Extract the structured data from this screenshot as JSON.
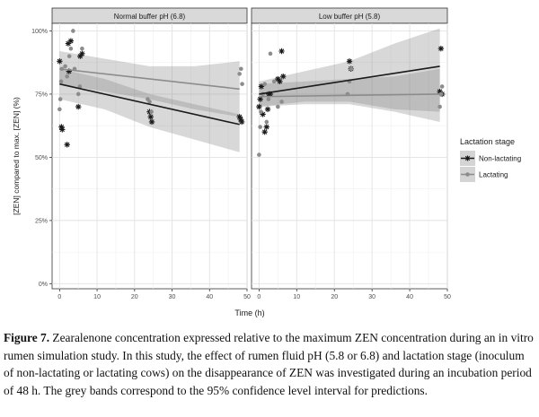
{
  "chart_data": {
    "type": "scatter",
    "title": "",
    "xlabel": "Time (h)",
    "ylabel": "[ZEN] compared to max. [ZEN] (%)",
    "xlim": [
      -2,
      50
    ],
    "ylim": [
      -2,
      103
    ],
    "x_ticks": [
      0,
      10,
      20,
      30,
      40,
      50
    ],
    "y_ticks": [
      0,
      25,
      50,
      75,
      100
    ],
    "y_tick_labels": [
      "0%",
      "25%",
      "50%",
      "75%",
      "100%"
    ],
    "grid": true,
    "legend": {
      "title": "Lactation stage",
      "position": "right",
      "entries": [
        {
          "name": "Non-lactating",
          "color": "#1a1a1a"
        },
        {
          "name": "Lactating",
          "color": "#8c8c8c"
        }
      ]
    },
    "panels": [
      {
        "strip": "Normal buffer pH (6.8)",
        "series": [
          {
            "name": "Non-lactating",
            "marker": "asterisk",
            "fit": {
              "x": [
                0,
                48
              ],
              "y": [
                79,
                63
              ]
            },
            "ci": {
              "x": [
                0,
                12,
                24,
                36,
                48
              ],
              "lower": [
                73,
                69,
                62,
                57,
                52
              ],
              "upper": [
                85,
                81,
                75,
                71,
                67
              ]
            },
            "points": [
              [
                0,
                88
              ],
              [
                0.5,
                62
              ],
              [
                0.7,
                61
              ],
              [
                2,
                55
              ],
              [
                2.3,
                95
              ],
              [
                2.5,
                84
              ],
              [
                3,
                96
              ],
              [
                5,
                70
              ],
              [
                5.5,
                90
              ],
              [
                6,
                91
              ],
              [
                24,
                68
              ],
              [
                24.3,
                66
              ],
              [
                24.6,
                64
              ],
              [
                48,
                66
              ],
              [
                48.3,
                65
              ],
              [
                48.6,
                64
              ]
            ]
          },
          {
            "name": "Lactating",
            "marker": "dot",
            "fit": {
              "x": [
                0,
                48
              ],
              "y": [
                85,
                77
              ]
            },
            "ci": {
              "x": [
                0,
                12,
                24,
                36,
                48
              ],
              "lower": [
                79,
                76,
                73,
                69,
                66
              ],
              "upper": [
                92,
                89,
                86,
                86,
                88
              ]
            },
            "points": [
              [
                0,
                69
              ],
              [
                0.2,
                73
              ],
              [
                0.4,
                80
              ],
              [
                0.6,
                85
              ],
              [
                1.5,
                86
              ],
              [
                2,
                82
              ],
              [
                2.6,
                90
              ],
              [
                3,
                93
              ],
              [
                3.6,
                100
              ],
              [
                4,
                85
              ],
              [
                5,
                75
              ],
              [
                5.4,
                78
              ],
              [
                6,
                93
              ],
              [
                23.5,
                73
              ],
              [
                24,
                72
              ],
              [
                24.5,
                68
              ],
              [
                48,
                83
              ],
              [
                48.4,
                85
              ],
              [
                48.7,
                79
              ]
            ]
          }
        ]
      },
      {
        "strip": "Low buffer pH (5.8)",
        "series": [
          {
            "name": "Non-lactating",
            "marker": "asterisk",
            "fit": {
              "x": [
                0,
                48
              ],
              "y": [
                75,
                86
              ]
            },
            "ci": {
              "x": [
                0,
                12,
                24,
                36,
                48
              ],
              "lower": [
                70,
                72,
                72,
                69,
                68
              ],
              "upper": [
                80,
                84,
                88,
                95,
                101
              ]
            },
            "points": [
              [
                0,
                70
              ],
              [
                0.3,
                73
              ],
              [
                0.6,
                78
              ],
              [
                1,
                67
              ],
              [
                1.5,
                60
              ],
              [
                2,
                62
              ],
              [
                2.3,
                69
              ],
              [
                2.6,
                75
              ],
              [
                3,
                75
              ],
              [
                5,
                81
              ],
              [
                5.5,
                80
              ],
              [
                6,
                92
              ],
              [
                6.4,
                82
              ],
              [
                24,
                88
              ],
              [
                24.4,
                85
              ],
              [
                48,
                76
              ],
              [
                48.3,
                93
              ],
              [
                48.6,
                75
              ]
            ]
          },
          {
            "name": "Lactating",
            "marker": "dot",
            "fit": {
              "x": [
                0,
                48
              ],
              "y": [
                74,
                75
              ]
            },
            "ci": {
              "x": [
                0,
                12,
                24,
                36,
                48
              ],
              "lower": [
                70,
                71,
                71,
                68,
                64
              ],
              "upper": [
                79,
                80,
                81,
                82,
                85
              ]
            },
            "points": [
              [
                0,
                51
              ],
              [
                0.3,
                62
              ],
              [
                0.5,
                68
              ],
              [
                1,
                75
              ],
              [
                1.5,
                79
              ],
              [
                2,
                64
              ],
              [
                2.5,
                73
              ],
              [
                3,
                91
              ],
              [
                4,
                80
              ],
              [
                5,
                70
              ],
              [
                6,
                72
              ],
              [
                23.5,
                75
              ],
              [
                24,
                80
              ],
              [
                24.5,
                85
              ],
              [
                48,
                70
              ],
              [
                48.3,
                75
              ],
              [
                48.6,
                78
              ]
            ]
          }
        ]
      }
    ]
  },
  "caption": {
    "label": "Figure 7.",
    "text": " Zearalenone concentration expressed relative to the maximum ZEN concentration during an in vitro rumen simulation study. In this study, the effect of rumen fluid pH (5.8 or 6.8) and lactation stage (inoculum of non-lactating or lactating cows) on the disappearance of ZEN was investigated during an incubation period of 48 h. The grey bands correspond to the 95% confidence level interval for predictions."
  }
}
